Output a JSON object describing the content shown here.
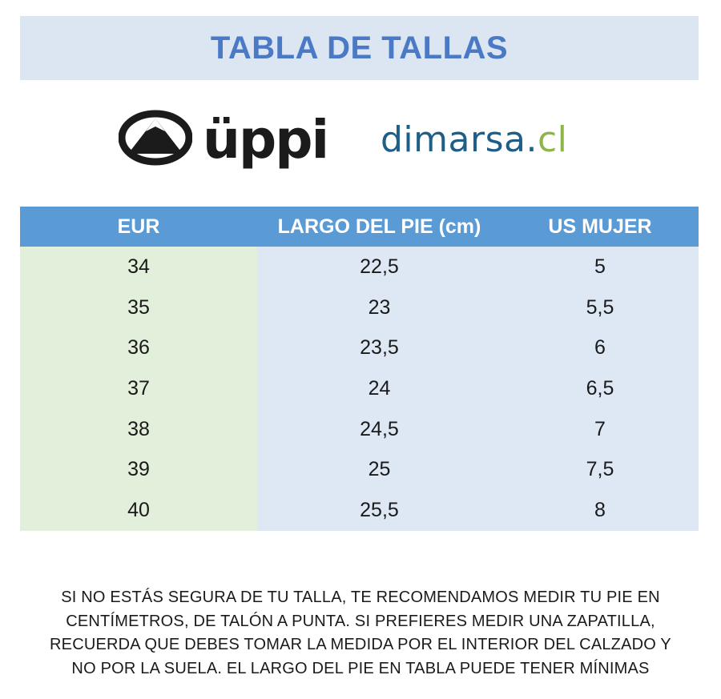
{
  "title": "TABLA DE TALLAS",
  "logos": {
    "brand_left": "üppi",
    "brand_left_icon": "mountain-circle-icon",
    "brand_right_name": "dimarsa",
    "brand_right_dot": ".",
    "brand_right_tld": "cl"
  },
  "colors": {
    "title": "#4a79c5",
    "title_band": "#dce6f2",
    "header_band": "#5b9bd5",
    "eur_column": "#e2efda",
    "value_columns": "#dde8f4",
    "dimarsa_blue": "#1f5e86",
    "dimarsa_green": "#8fb548"
  },
  "table": {
    "headers": [
      "EUR",
      "LARGO DEL PIE (cm)",
      "US MUJER"
    ],
    "rows": [
      [
        "34",
        "22,5",
        "5"
      ],
      [
        "35",
        "23",
        "5,5"
      ],
      [
        "36",
        "23,5",
        "6"
      ],
      [
        "37",
        "24",
        "6,5"
      ],
      [
        "38",
        "24,5",
        "7"
      ],
      [
        "39",
        "25",
        "7,5"
      ],
      [
        "40",
        "25,5",
        "8"
      ]
    ]
  },
  "note": {
    "lines": [
      "SI NO ESTÁS SEGURA DE TU TALLA, TE RECOMENDAMOS MEDIR TU PIE EN",
      "CENTÍMETROS, DE TALÓN A PUNTA. SI PREFIERES MEDIR UNA ZAPATILLA,",
      "RECUERDA QUE DEBES TOMAR LA MEDIDA POR EL INTERIOR DEL CALZADO Y",
      "NO POR LA SUELA. EL LARGO DEL PIE EN TABLA PUEDE TENER MÍNIMAS"
    ]
  }
}
